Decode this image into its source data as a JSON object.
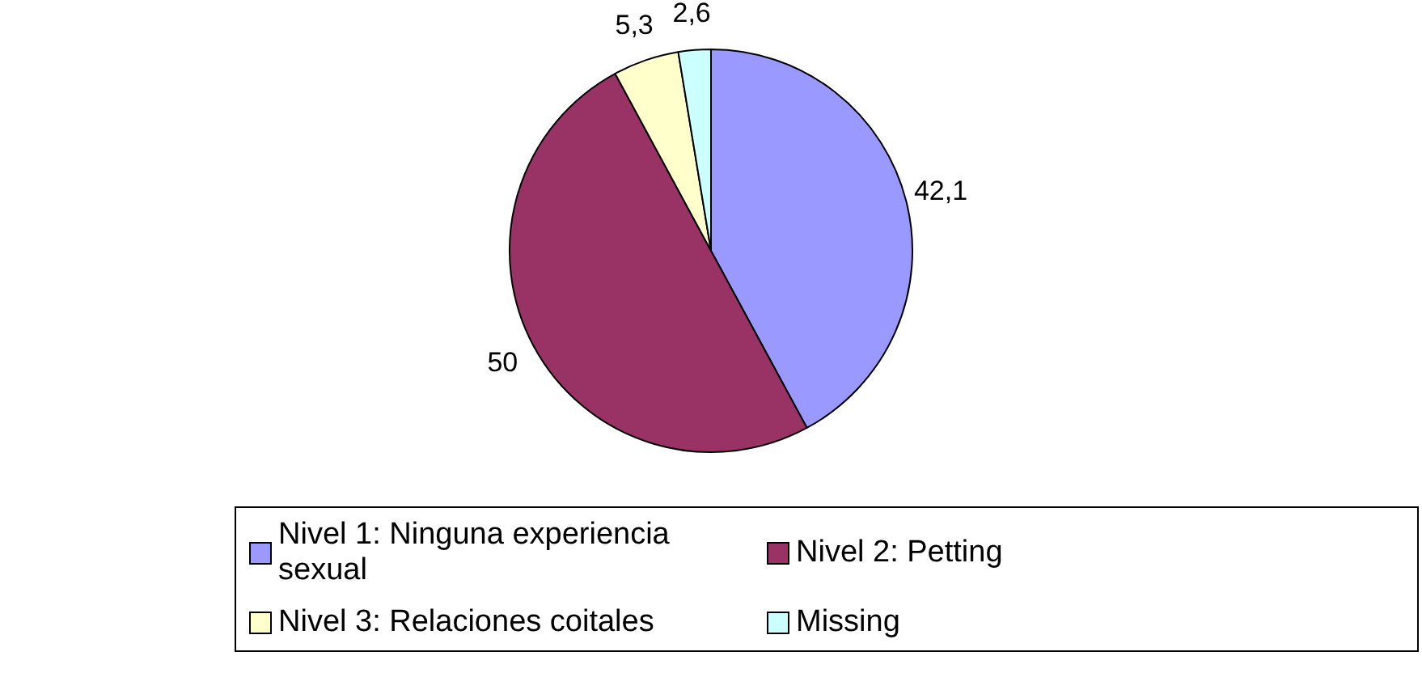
{
  "chart_data": {
    "type": "pie",
    "categories": [
      "Nivel 1: Ninguna experiencia sexual",
      "Nivel 2: Petting",
      "Nivel 3: Relaciones coitales",
      "Missing"
    ],
    "values": [
      42.1,
      50,
      5.3,
      2.6
    ],
    "colors": [
      "#9999ff",
      "#993366",
      "#ffffcc",
      "#ccffff"
    ],
    "value_labels": [
      "42,1",
      "50",
      "5,3",
      "2,6"
    ],
    "legend": "bottom"
  }
}
